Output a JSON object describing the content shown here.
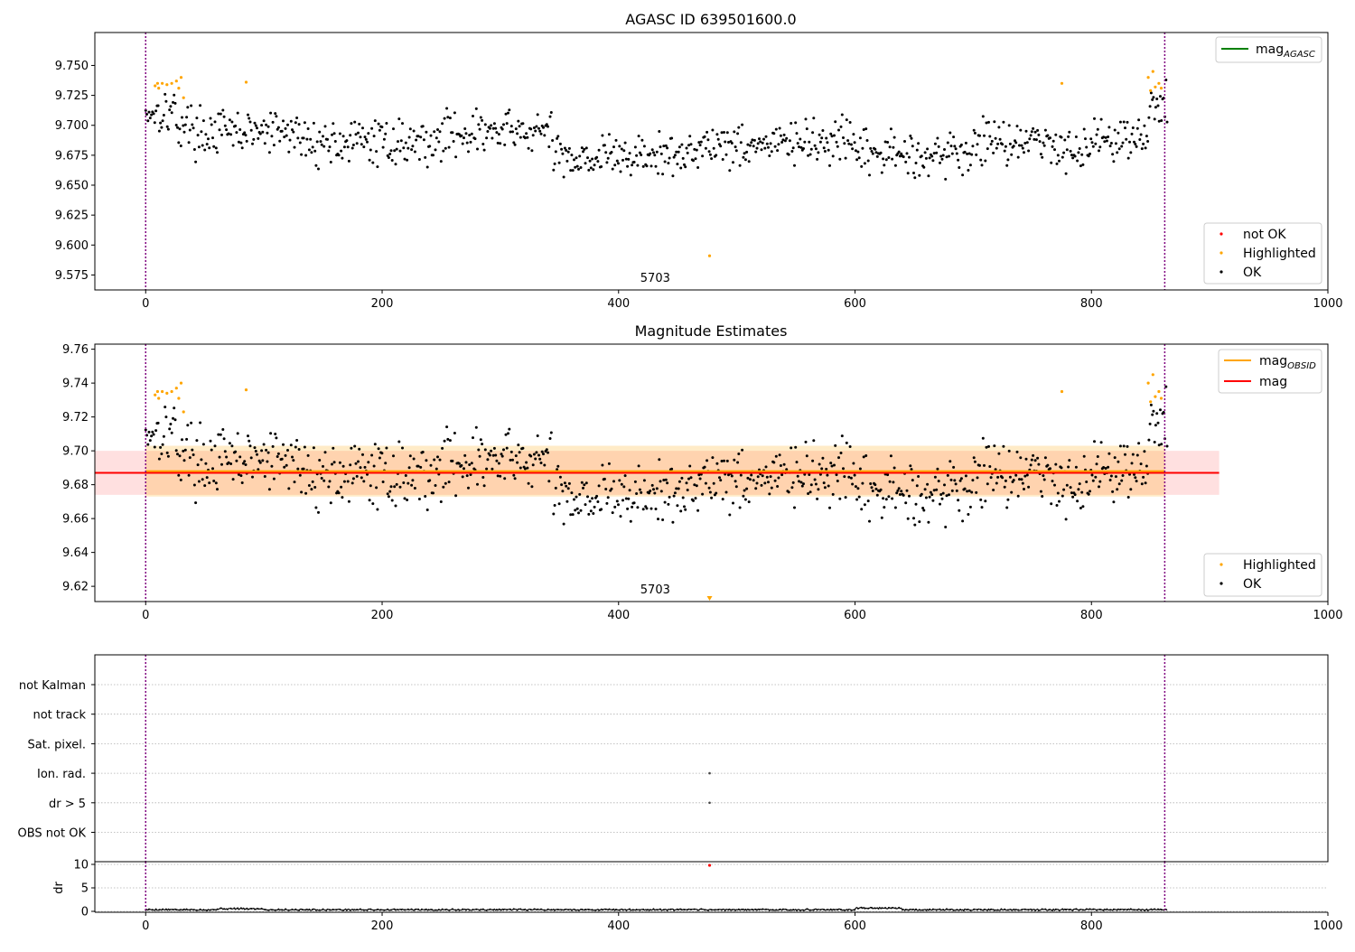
{
  "figure": {
    "highlight_color": "#ffa500",
    "ok_color": "#000000",
    "not_ok_color": "#ff0000",
    "agasc_color": "#008000",
    "obsid_line_color": "#ffa500",
    "mag_line_color": "#ff0000",
    "boundary_color": "#800080"
  },
  "chart_data": [
    {
      "type": "scatter",
      "title": "AGASC ID 639501600.0",
      "xlim": [
        -43,
        1000
      ],
      "ylim": [
        9.5625,
        9.7775
      ],
      "xticks": [
        0,
        200,
        400,
        600,
        800,
        1000
      ],
      "yticks": [
        9.575,
        9.6,
        9.625,
        9.65,
        9.675,
        9.7,
        9.725,
        9.75
      ],
      "ytick_labels": [
        "9.575",
        "9.600",
        "9.625",
        "9.650",
        "9.675",
        "9.700",
        "9.725",
        "9.750"
      ],
      "obsid_boundaries": [
        0,
        862
      ],
      "obsid_label": {
        "text": "5703",
        "x": 431
      },
      "line_legend": {
        "placement": "upper right",
        "entries": [
          {
            "base": "mag",
            "sub": "AGASC",
            "color": "#008000"
          }
        ]
      },
      "point_legend": {
        "placement": "lower right",
        "entries": [
          {
            "label": "not OK",
            "color": "#ff0000"
          },
          {
            "label": "Highlighted",
            "color": "#ffa500"
          },
          {
            "label": "OK",
            "color": "#000000"
          }
        ]
      },
      "highlighted_points": [
        [
          8,
          9.733
        ],
        [
          10,
          9.735
        ],
        [
          11,
          9.731
        ],
        [
          14,
          9.735
        ],
        [
          18,
          9.734
        ],
        [
          22,
          9.735
        ],
        [
          26,
          9.737
        ],
        [
          28,
          9.731
        ],
        [
          30,
          9.74
        ],
        [
          32,
          9.723
        ],
        [
          85,
          9.736
        ],
        [
          477,
          9.591
        ],
        [
          775,
          9.735
        ],
        [
          848,
          9.74
        ],
        [
          850,
          9.729
        ],
        [
          852,
          9.745
        ],
        [
          854,
          9.732
        ],
        [
          857,
          9.735
        ],
        [
          859,
          9.731
        ]
      ],
      "ok_series": {
        "x_start": 0,
        "x_end": 864,
        "count": 900,
        "seed": 17
      }
    },
    {
      "type": "scatter",
      "title": "Magnitude Estimates",
      "xlim": [
        -43,
        1000
      ],
      "ylim": [
        9.611,
        9.763
      ],
      "xticks": [
        0,
        200,
        400,
        600,
        800,
        1000
      ],
      "yticks": [
        9.62,
        9.64,
        9.66,
        9.68,
        9.7,
        9.72,
        9.74,
        9.76
      ],
      "ytick_labels": [
        "9.62",
        "9.64",
        "9.66",
        "9.68",
        "9.70",
        "9.72",
        "9.74",
        "9.76"
      ],
      "obsid_boundaries": [
        0,
        862
      ],
      "obsid_label": {
        "text": "5703",
        "x": 431
      },
      "mag": 9.687,
      "mag_band": [
        9.674,
        9.7
      ],
      "mag_extent": [
        -43,
        908
      ],
      "obsid_mag": 9.688,
      "obsid_band": [
        9.673,
        9.703
      ],
      "obsid_extent": [
        0,
        862
      ],
      "line_legend": {
        "placement": "upper right",
        "entries": [
          {
            "base": "mag",
            "sub": "OBSID",
            "color": "#ffa500"
          },
          {
            "base": "mag",
            "sub": "",
            "color": "#ff0000"
          }
        ]
      },
      "point_legend": {
        "placement": "lower right",
        "entries": [
          {
            "label": "Highlighted",
            "color": "#ffa500"
          },
          {
            "label": "OK",
            "color": "#000000"
          }
        ]
      },
      "highlighted_points": [
        [
          8,
          9.733
        ],
        [
          10,
          9.735
        ],
        [
          11,
          9.731
        ],
        [
          14,
          9.735
        ],
        [
          18,
          9.734
        ],
        [
          22,
          9.735
        ],
        [
          26,
          9.737
        ],
        [
          28,
          9.731
        ],
        [
          30,
          9.74
        ],
        [
          32,
          9.723
        ],
        [
          85,
          9.736
        ],
        [
          775,
          9.735
        ],
        [
          848,
          9.74
        ],
        [
          850,
          9.729
        ],
        [
          852,
          9.745
        ],
        [
          854,
          9.732
        ],
        [
          857,
          9.735
        ],
        [
          859,
          9.731
        ]
      ],
      "offscale_marker": {
        "x": 477,
        "note": "point below axis range"
      },
      "ok_series": {
        "x_start": 0,
        "x_end": 864,
        "count": 900,
        "seed": 17
      }
    },
    {
      "type": "scatter",
      "title": "",
      "xlim": [
        -43,
        1000
      ],
      "flag_rows": [
        "not Kalman",
        "not track",
        "Sat. pixel.",
        "Ion. rad.",
        "dr > 5",
        "OBS not OK"
      ],
      "flag_points": [
        {
          "row": "Ion. rad.",
          "x": 477
        },
        {
          "row": "dr > 5",
          "x": 477
        }
      ],
      "obsid_boundaries": [
        0,
        862
      ]
    },
    {
      "type": "line",
      "title": "",
      "ylabel": "dr",
      "xlim": [
        -43,
        1000
      ],
      "ylim": [
        0,
        10
      ],
      "xticks": [
        0,
        200,
        400,
        600,
        800,
        1000
      ],
      "yticks": [
        0,
        5,
        10
      ],
      "dr_outlier": {
        "x": 477,
        "y": 9.8
      },
      "dr_series": {
        "x_start": 0,
        "x_end": 864,
        "count": 900,
        "base": 0.35
      },
      "obsid_boundaries": [
        0,
        862
      ]
    }
  ]
}
